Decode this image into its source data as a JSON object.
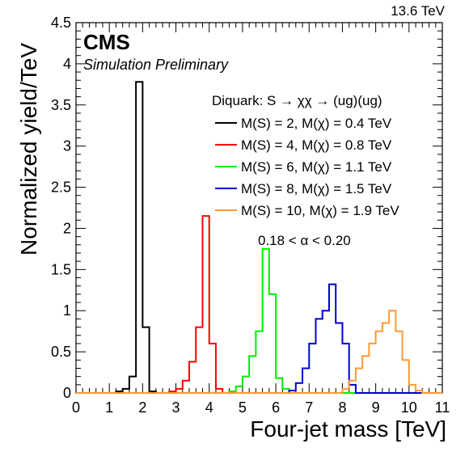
{
  "chart_data": {
    "type": "line",
    "energy_label": "13.6 TeV",
    "experiment": "CMS",
    "status": "Simulation Preliminary",
    "xlabel": "Four-jet mass [TeV]",
    "ylabel": "Normalized yield/TeV",
    "xlim": [
      0,
      11
    ],
    "ylim": [
      0,
      4.5
    ],
    "x_ticks": [
      "0",
      "1",
      "2",
      "3",
      "4",
      "5",
      "6",
      "7",
      "8",
      "9",
      "10",
      "11"
    ],
    "y_ticks": [
      "0",
      "0.5",
      "1",
      "1.5",
      "2",
      "2.5",
      "3",
      "3.5",
      "4",
      "4.5"
    ],
    "legend_header": "Diquark: S → χχ → (ug)(ug)",
    "legend_placement": "top-right",
    "annotation": "0.18 < α < 0.20",
    "grid": false,
    "bin_width": 0.2,
    "series": [
      {
        "name": "M(S) = 2, M(χ) = 0.4 TeV",
        "color": "#000000",
        "bins": [
          [
            1.2,
            0.02
          ],
          [
            1.4,
            0.05
          ],
          [
            1.6,
            0.2
          ],
          [
            1.8,
            3.78
          ],
          [
            2.0,
            0.8
          ],
          [
            2.2,
            0.02
          ]
        ]
      },
      {
        "name": "M(S) = 4, M(χ) = 0.8 TeV",
        "color": "#ff0000",
        "bins": [
          [
            2.8,
            0.02
          ],
          [
            3.0,
            0.05
          ],
          [
            3.2,
            0.15
          ],
          [
            3.4,
            0.38
          ],
          [
            3.6,
            0.8
          ],
          [
            3.8,
            2.15
          ],
          [
            4.0,
            0.6
          ],
          [
            4.2,
            0.05
          ]
        ]
      },
      {
        "name": "M(S) = 6, M(χ) = 1.1 TeV",
        "color": "#00ee00",
        "bins": [
          [
            4.6,
            0.02
          ],
          [
            4.8,
            0.08
          ],
          [
            5.0,
            0.2
          ],
          [
            5.2,
            0.45
          ],
          [
            5.4,
            0.75
          ],
          [
            5.6,
            1.75
          ],
          [
            5.8,
            1.2
          ],
          [
            6.0,
            0.18
          ],
          [
            6.2,
            0.05
          ]
        ]
      },
      {
        "name": "M(S) = 8, M(χ) = 1.5 TeV",
        "color": "#0000cc",
        "bins": [
          [
            6.4,
            0.03
          ],
          [
            6.6,
            0.12
          ],
          [
            6.8,
            0.3
          ],
          [
            7.0,
            0.6
          ],
          [
            7.2,
            0.9
          ],
          [
            7.4,
            1.0
          ],
          [
            7.6,
            1.32
          ],
          [
            7.8,
            0.85
          ],
          [
            8.0,
            0.6
          ],
          [
            8.2,
            0.1
          ]
        ]
      },
      {
        "name": "M(S) = 10, M(χ) = 1.9 TeV",
        "color": "#ff9933",
        "bins": [
          [
            8.0,
            0.05
          ],
          [
            8.2,
            0.15
          ],
          [
            8.4,
            0.3
          ],
          [
            8.6,
            0.45
          ],
          [
            8.8,
            0.6
          ],
          [
            9.0,
            0.75
          ],
          [
            9.2,
            0.85
          ],
          [
            9.4,
            1.0
          ],
          [
            9.6,
            0.75
          ],
          [
            9.8,
            0.4
          ],
          [
            10.0,
            0.1
          ],
          [
            10.2,
            0.03
          ]
        ]
      }
    ]
  }
}
